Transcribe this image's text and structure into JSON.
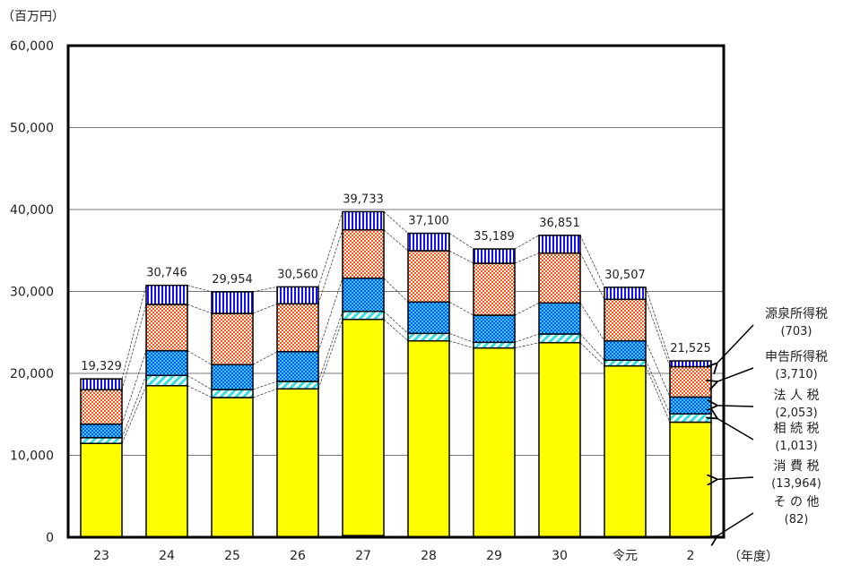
{
  "chart_data": {
    "type": "bar",
    "stacked": true,
    "unit_label": "（百万円）",
    "xlabel": "（年度）",
    "ylim": [
      0,
      60000
    ],
    "yticks": [
      0,
      10000,
      20000,
      30000,
      40000,
      50000,
      60000
    ],
    "ytick_labels": [
      "0",
      "10,000",
      "20,000",
      "30,000",
      "40,000",
      "50,000",
      "60,000"
    ],
    "grid": true,
    "categories": [
      "23",
      "24",
      "25",
      "26",
      "27",
      "28",
      "29",
      "30",
      "令元",
      "2"
    ],
    "totals": [
      19329,
      30746,
      29954,
      30560,
      39733,
      37100,
      35189,
      36851,
      30507,
      21525
    ],
    "total_labels": [
      "19,329",
      "30,746",
      "29,954",
      "30,560",
      "39,733",
      "37,100",
      "35,189",
      "36,851",
      "30,507",
      "21,525"
    ],
    "series": [
      {
        "name": "その他",
        "label": "そ の 他",
        "value_label": "(82)",
        "pattern": "dark",
        "color": "#800040",
        "values": [
          50,
          50,
          50,
          60,
          200,
          60,
          60,
          70,
          70,
          82
        ]
      },
      {
        "name": "消費税",
        "label": "消 費 税",
        "value_label": "(13,964)",
        "pattern": "solid",
        "color": "#ffff00",
        "values": [
          11400,
          18450,
          17000,
          18050,
          26390,
          23910,
          23040,
          23680,
          20840,
          13964
        ]
      },
      {
        "name": "相続税",
        "label": "相 続 税",
        "value_label": "(1,013)",
        "pattern": "diag",
        "color": "#33e0e0",
        "values": [
          700,
          1250,
          980,
          910,
          980,
          910,
          690,
          1060,
          700,
          1013
        ]
      },
      {
        "name": "法人税",
        "label": "法 人 税",
        "value_label": "(2,053)",
        "pattern": "check-blue",
        "color": "#0050ff",
        "values": [
          1650,
          3020,
          3030,
          3640,
          4050,
          3830,
          3310,
          3790,
          2360,
          2053
        ]
      },
      {
        "name": "申告所得税",
        "label": "申告所得税",
        "value_label": "(3,710)",
        "pattern": "check-orange",
        "color": "#ff5010",
        "values": [
          4200,
          5650,
          6260,
          5830,
          5900,
          6260,
          6340,
          6080,
          5070,
          3710
        ]
      },
      {
        "name": "源泉所得税",
        "label": "源泉所得税",
        "value_label": "(703)",
        "pattern": "vstripe",
        "color": "#1010ff",
        "values": [
          1329,
          2326,
          2634,
          2070,
          2213,
          2130,
          1749,
          2171,
          1467,
          703
        ]
      }
    ]
  }
}
